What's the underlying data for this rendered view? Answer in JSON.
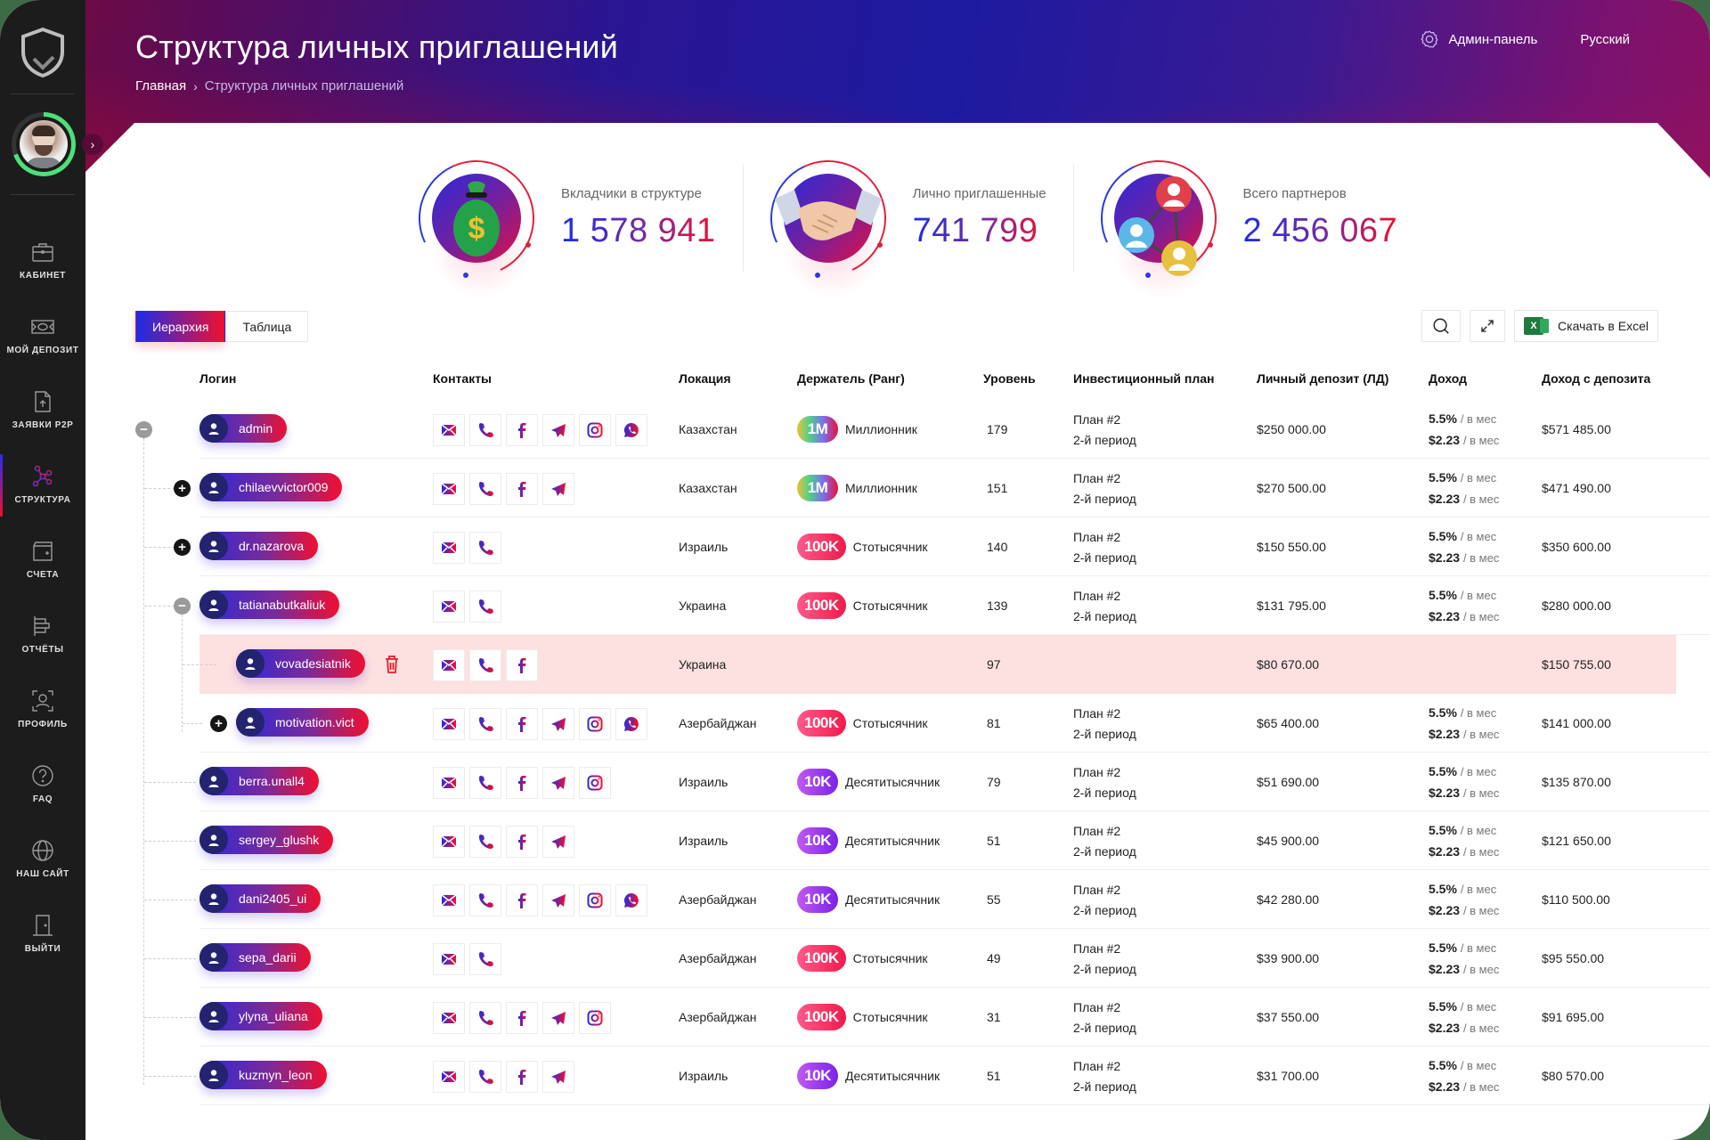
{
  "header": {
    "title": "Структура личных приглашений",
    "breadcrumb": {
      "home": "Главная",
      "separator": "›",
      "current": "Структура личных приглашений"
    },
    "admin_panel_label": "Админ-панель",
    "language": "Русский"
  },
  "sidebar": {
    "items": [
      {
        "label": "КАБИНЕТ",
        "icon": "briefcase-icon",
        "active": false
      },
      {
        "label": "МОЙ ДЕПОЗИТ",
        "icon": "banknote-icon",
        "active": false
      },
      {
        "label": "ЗАЯВКИ P2P",
        "icon": "file-upload-icon",
        "active": false
      },
      {
        "label": "СТРУКТУРА",
        "icon": "structure-icon",
        "active": true
      },
      {
        "label": "СЧЕТА",
        "icon": "wallet-icon",
        "active": false
      },
      {
        "label": "ОТЧЁТЫ",
        "icon": "reports-icon",
        "active": false
      },
      {
        "label": "ПРОФИЛЬ",
        "icon": "profile-icon",
        "active": false
      },
      {
        "label": "FAQ",
        "icon": "help-icon",
        "active": false
      },
      {
        "label": "НАШ САЙТ",
        "icon": "globe-icon",
        "active": false
      },
      {
        "label": "ВЫЙТИ",
        "icon": "door-icon",
        "active": false
      }
    ]
  },
  "stats": [
    {
      "label": "Вкладчики в структуре",
      "value": "1 578 941",
      "icon": "money-bag-icon"
    },
    {
      "label": "Лично приглашенные",
      "value": "741 799",
      "icon": "handshake-icon"
    },
    {
      "label": "Всего партнеров",
      "value": "2 456 067",
      "icon": "partners-network-icon"
    }
  ],
  "tabs": [
    {
      "label": "Иерархия",
      "active": true
    },
    {
      "label": "Таблица",
      "active": false
    }
  ],
  "toolbar": {
    "excel_label": "Скачать в Excel"
  },
  "table": {
    "columns": [
      "Логин",
      "Контакты",
      "Локация",
      "Держатель (Ранг)",
      "Уровень",
      "Инвестиционный план",
      "Личный депозит (ЛД)",
      "Доход",
      "Доход с депозита"
    ],
    "income_unit": "/ в мес",
    "rows": [
      {
        "login": "admin",
        "contacts": [
          "email",
          "phone",
          "facebook",
          "telegram",
          "instagram",
          "whatsapp"
        ],
        "location": "Казахстан",
        "rank_badge": "1M",
        "rank": "Миллионник",
        "level": "179",
        "plan": "План #2",
        "period": "2-й период",
        "deposit": "$250 000.00",
        "income_pct": "5.5%",
        "income_amt": "$2.23",
        "deposit_income": "$571 485.00"
      },
      {
        "login": "chilaevvictor009",
        "contacts": [
          "email",
          "phone",
          "facebook",
          "telegram"
        ],
        "location": "Казахстан",
        "rank_badge": "1M",
        "rank": "Миллионник",
        "level": "151",
        "plan": "План #2",
        "period": "2-й период",
        "deposit": "$270 500.00",
        "income_pct": "5.5%",
        "income_amt": "$2.23",
        "deposit_income": "$471 490.00"
      },
      {
        "login": "dr.nazarova",
        "contacts": [
          "email",
          "phone"
        ],
        "location": "Израиль",
        "rank_badge": "100K",
        "rank": "Стотысячник",
        "level": "140",
        "plan": "План #2",
        "period": "2-й период",
        "deposit": "$150 550.00",
        "income_pct": "5.5%",
        "income_amt": "$2.23",
        "deposit_income": "$350 600.00"
      },
      {
        "login": "tatianabutkaliuk",
        "contacts": [
          "email",
          "phone"
        ],
        "location": "Украина",
        "rank_badge": "100K",
        "rank": "Стотысячник",
        "level": "139",
        "plan": "План #2",
        "period": "2-й период",
        "deposit": "$131 795.00",
        "income_pct": "5.5%",
        "income_amt": "$2.23",
        "deposit_income": "$280 000.00"
      },
      {
        "login": "vovadesiatnik",
        "contacts": [
          "email",
          "phone",
          "facebook"
        ],
        "location": "Украина",
        "rank_badge": "",
        "rank": "",
        "level": "97",
        "plan": "",
        "period": "",
        "deposit": "$80 670.00",
        "income_pct": "",
        "income_amt": "",
        "deposit_income": "$150 755.00"
      },
      {
        "login": "motivation.vict",
        "contacts": [
          "email",
          "phone",
          "facebook",
          "telegram",
          "instagram",
          "whatsapp"
        ],
        "location": "Азербайджан",
        "rank_badge": "100K",
        "rank": "Стотысячник",
        "level": "81",
        "plan": "План #2",
        "period": "2-й период",
        "deposit": "$65 400.00",
        "income_pct": "5.5%",
        "income_amt": "$2.23",
        "deposit_income": "$141 000.00"
      },
      {
        "login": "berra.unall4",
        "contacts": [
          "email",
          "phone",
          "facebook",
          "telegram",
          "instagram"
        ],
        "location": "Израиль",
        "rank_badge": "10K",
        "rank": "Десятитысячник",
        "level": "79",
        "plan": "План #2",
        "period": "2-й период",
        "deposit": "$51 690.00",
        "income_pct": "5.5%",
        "income_amt": "$2.23",
        "deposit_income": "$135 870.00"
      },
      {
        "login": "sergey_glushk",
        "contacts": [
          "email",
          "phone",
          "facebook",
          "telegram"
        ],
        "location": "Израиль",
        "rank_badge": "10K",
        "rank": "Десятитысячник",
        "level": "51",
        "plan": "План #2",
        "period": "2-й период",
        "deposit": "$45 900.00",
        "income_pct": "5.5%",
        "income_amt": "$2.23",
        "deposit_income": "$121 650.00"
      },
      {
        "login": "dani2405_ui",
        "contacts": [
          "email",
          "phone",
          "facebook",
          "telegram",
          "instagram",
          "whatsapp"
        ],
        "location": "Азербайджан",
        "rank_badge": "10K",
        "rank": "Десятитысячник",
        "level": "55",
        "plan": "План #2",
        "period": "2-й период",
        "deposit": "$42 280.00",
        "income_pct": "5.5%",
        "income_amt": "$2.23",
        "deposit_income": "$110 500.00"
      },
      {
        "login": "sepa_darii",
        "contacts": [
          "email",
          "phone"
        ],
        "location": "Азербайджан",
        "rank_badge": "100K",
        "rank": "Стотысячник",
        "level": "49",
        "plan": "План #2",
        "period": "2-й период",
        "deposit": "$39 900.00",
        "income_pct": "5.5%",
        "income_amt": "$2.23",
        "deposit_income": "$95 550.00"
      },
      {
        "login": "ylyna_uliana",
        "contacts": [
          "email",
          "phone",
          "facebook",
          "telegram",
          "instagram"
        ],
        "location": "Азербайджан",
        "rank_badge": "100K",
        "rank": "Стотысячник",
        "level": "31",
        "plan": "План #2",
        "period": "2-й период",
        "deposit": "$37 550.00",
        "income_pct": "5.5%",
        "income_amt": "$2.23",
        "deposit_income": "$91 695.00"
      },
      {
        "login": "kuzmyn_leon",
        "contacts": [
          "email",
          "phone",
          "facebook",
          "telegram"
        ],
        "location": "Израиль",
        "rank_badge": "10K",
        "rank": "Десятитысячник",
        "level": "51",
        "plan": "План #2",
        "period": "2-й период",
        "deposit": "$31 700.00",
        "income_pct": "5.5%",
        "income_amt": "$2.23",
        "deposit_income": "$80 570.00"
      }
    ]
  },
  "colors": {
    "gradient_start": "#1c2ce8",
    "gradient_end": "#f01030",
    "sidebar_bg": "#1c1c1c",
    "highlight_row": "#fde0e0",
    "avatar_ring": "#4ee07a"
  }
}
